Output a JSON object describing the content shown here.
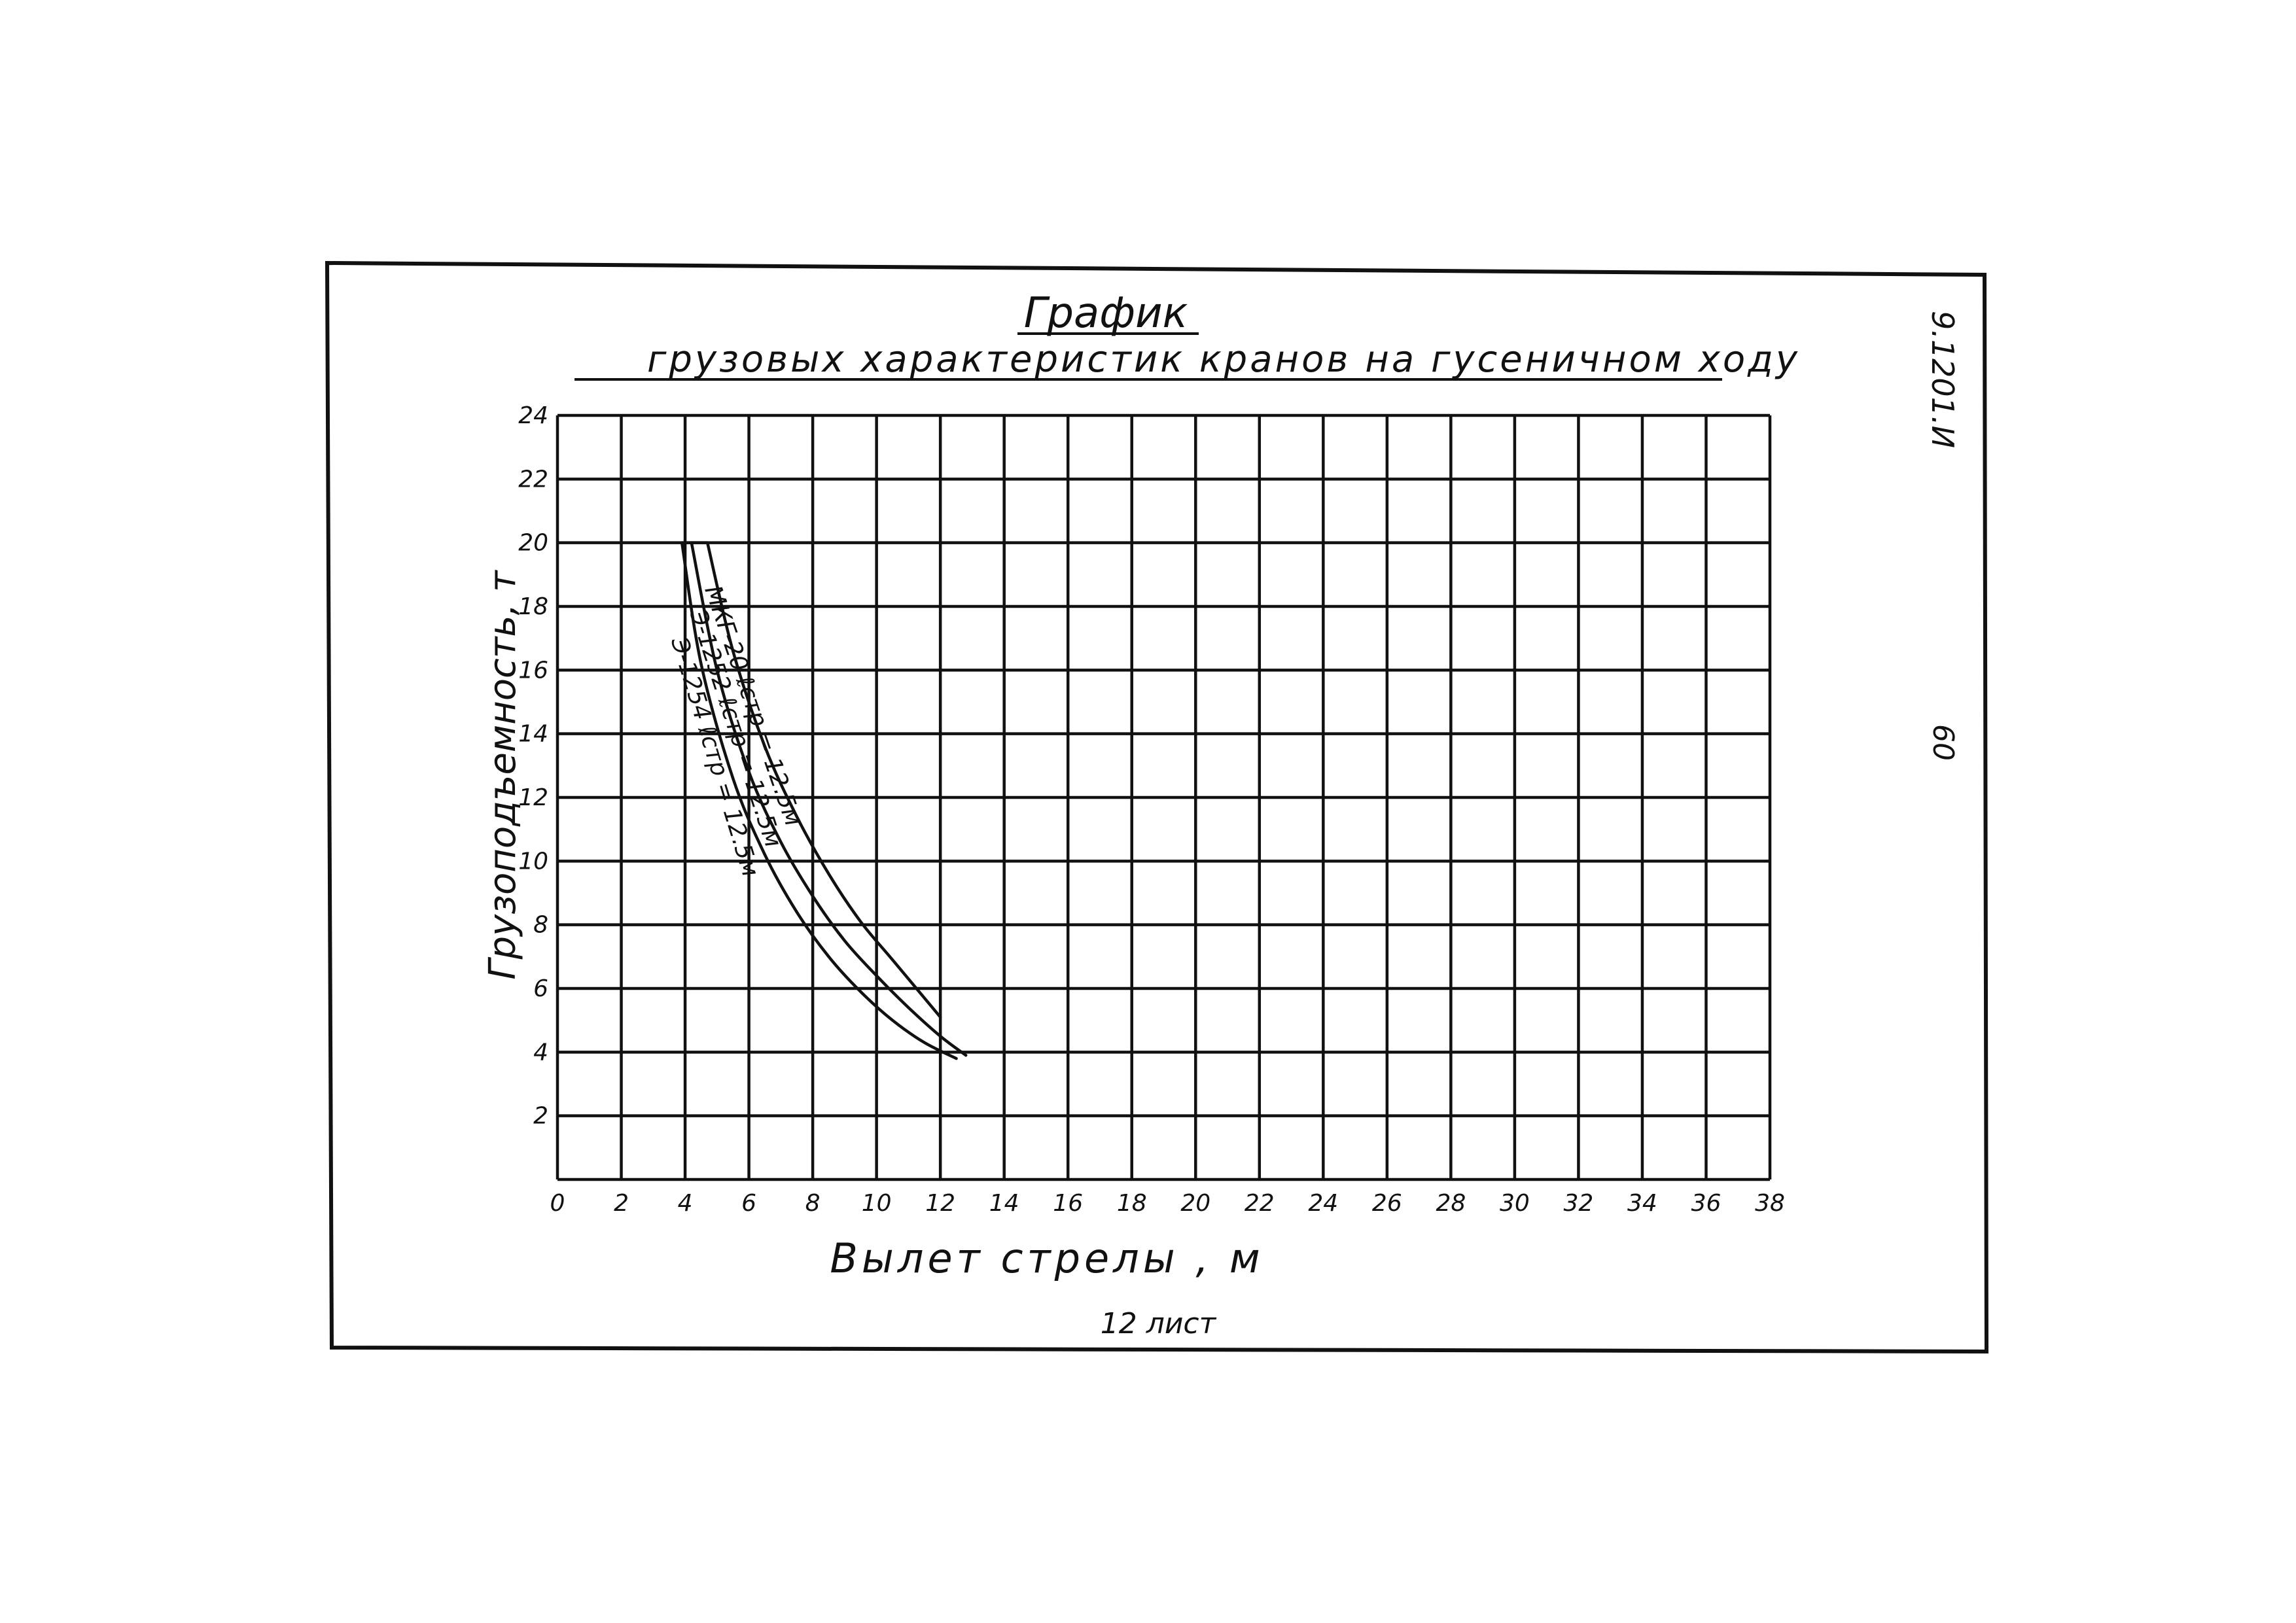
{
  "sheet": {
    "code": "9.1201.И",
    "page_number": "60",
    "footer": "12 лист"
  },
  "chart_data": {
    "type": "line",
    "title": "График",
    "subtitle": "грузовых характеристик кранов на гусеничном ходу",
    "xlabel": "Вылет стрелы , м",
    "ylabel": "Грузоподъемность, т",
    "xlim": [
      0,
      38
    ],
    "ylim": [
      0,
      24
    ],
    "x_ticks": [
      0,
      2,
      4,
      6,
      8,
      10,
      12,
      14,
      16,
      18,
      20,
      22,
      24,
      26,
      28,
      30,
      32,
      34,
      36,
      38
    ],
    "y_ticks": [
      2,
      4,
      6,
      8,
      10,
      12,
      14,
      16,
      18,
      20,
      22,
      24
    ],
    "grid": true,
    "series": [
      {
        "name": "МКГ-20 ℓстр = 12.5м",
        "x": [
          4.7,
          5.5,
          6.5,
          7.5,
          8.5,
          9.5,
          10.5,
          12.0
        ],
        "y": [
          20.0,
          16.6,
          13.6,
          11.4,
          9.6,
          8.1,
          6.9,
          5.1
        ]
      },
      {
        "name": "Э-1252 ℓстр = 12.5м",
        "x": [
          4.2,
          5.0,
          6.0,
          7.0,
          8.0,
          9.0,
          10.0,
          11.0,
          12.0,
          12.8
        ],
        "y": [
          20.0,
          16.0,
          12.8,
          10.6,
          8.9,
          7.5,
          6.4,
          5.4,
          4.5,
          3.9
        ]
      },
      {
        "name": "Э-1254 ℓстр = 12.5м",
        "x": [
          3.9,
          4.5,
          5.5,
          6.5,
          7.5,
          8.5,
          9.5,
          10.5,
          11.5,
          12.5
        ],
        "y": [
          20.0,
          16.2,
          12.6,
          10.2,
          8.4,
          7.0,
          5.9,
          5.0,
          4.3,
          3.8
        ]
      }
    ]
  }
}
